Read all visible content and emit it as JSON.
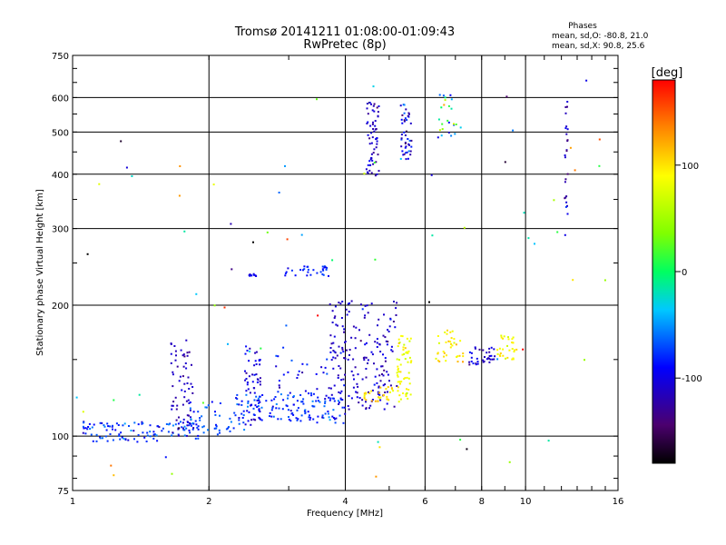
{
  "title": "Tromsø 20141211 01:08:00-01:09:43",
  "subtitle": "RwPretec (8p)",
  "phase_info": {
    "heading": "Phases",
    "line_o": "mean, sd,O: -80.8, 21.0",
    "line_x": "mean, sd,X:  90.8, 25.6"
  },
  "colorbar": {
    "label": "[deg]",
    "ticks": [
      "100",
      "0",
      "-100"
    ],
    "tick_values": [
      100,
      0,
      -100
    ],
    "range": [
      -180,
      180
    ]
  },
  "chart_data": {
    "type": "scatter",
    "xlabel": "Frequency [MHz]",
    "ylabel": "Stationary phase Virtual Height [km]",
    "xscale": "log",
    "yscale": "log",
    "xlim": [
      1,
      16
    ],
    "ylim": [
      75,
      750
    ],
    "x_ticks": [
      1,
      2,
      4,
      6,
      8,
      10,
      16
    ],
    "x_tick_labels": [
      "1",
      "2",
      "4",
      "6",
      "8",
      "10",
      "16"
    ],
    "y_ticks": [
      75,
      100,
      200,
      300,
      400,
      500,
      600,
      750
    ],
    "y_tick_labels": [
      "75",
      "100",
      "200",
      "300",
      "400",
      "500",
      "600",
      "750"
    ],
    "grid": true,
    "color_encodes": "phase [deg]",
    "clusters": [
      {
        "x_range": [
          1.05,
          1.9
        ],
        "y_range": [
          97,
          108
        ],
        "count": 110,
        "phase_mean": -80,
        "phase_sd": 15
      },
      {
        "x_range": [
          1.65,
          1.85
        ],
        "y_range": [
          100,
          168
        ],
        "count": 70,
        "phase_mean": -115,
        "phase_sd": 10
      },
      {
        "x_range": [
          1.8,
          2.4
        ],
        "y_range": [
          100,
          120
        ],
        "count": 45,
        "phase_mean": -70,
        "phase_sd": 12
      },
      {
        "x_range": [
          2.4,
          2.6
        ],
        "y_range": [
          105,
          162
        ],
        "count": 55,
        "phase_mean": -105,
        "phase_sd": 12
      },
      {
        "x_range": [
          2.2,
          4.0
        ],
        "y_range": [
          107,
          125
        ],
        "count": 130,
        "phase_mean": -80,
        "phase_sd": 15
      },
      {
        "x_range": [
          2.8,
          4.0
        ],
        "y_range": [
          120,
          160
        ],
        "count": 40,
        "phase_mean": -95,
        "phase_sd": 15
      },
      {
        "x_range": [
          3.7,
          5.2
        ],
        "y_range": [
          115,
          205
        ],
        "count": 180,
        "phase_mean": -110,
        "phase_sd": 12
      },
      {
        "x_range": [
          4.4,
          5.1
        ],
        "y_range": [
          120,
          130
        ],
        "count": 30,
        "phase_mean": 105,
        "phase_sd": 15
      },
      {
        "x_range": [
          5.2,
          5.6
        ],
        "y_range": [
          120,
          170
        ],
        "count": 60,
        "phase_mean": 85,
        "phase_sd": 12
      },
      {
        "x_range": [
          6.3,
          7.3
        ],
        "y_range": [
          148,
          175
        ],
        "count": 35,
        "phase_mean": 95,
        "phase_sd": 12
      },
      {
        "x_range": [
          7.5,
          8.6
        ],
        "y_range": [
          146,
          160
        ],
        "count": 35,
        "phase_mean": -110,
        "phase_sd": 12
      },
      {
        "x_range": [
          8.6,
          9.6
        ],
        "y_range": [
          150,
          172
        ],
        "count": 30,
        "phase_mean": 90,
        "phase_sd": 12
      },
      {
        "x_range": [
          4.45,
          4.75
        ],
        "y_range": [
          395,
          590
        ],
        "count": 60,
        "phase_mean": -115,
        "phase_sd": 12
      },
      {
        "x_range": [
          5.3,
          5.6
        ],
        "y_range": [
          430,
          580
        ],
        "count": 45,
        "phase_mean": -95,
        "phase_sd": 30
      },
      {
        "x_range": [
          6.4,
          7.2
        ],
        "y_range": [
          480,
          620
        ],
        "count": 25,
        "phase_mean": -20,
        "phase_sd": 60
      },
      {
        "x_range": [
          2.45,
          2.55
        ],
        "y_range": [
          233,
          236
        ],
        "count": 10,
        "phase_mean": -95,
        "phase_sd": 8
      },
      {
        "x_range": [
          2.9,
          3.7
        ],
        "y_range": [
          232,
          246
        ],
        "count": 30,
        "phase_mean": -85,
        "phase_sd": 12
      },
      {
        "x_range": [
          12.2,
          12.4
        ],
        "y_range": [
          270,
          590
        ],
        "count": 25,
        "phase_mean": -120,
        "phase_sd": 15
      },
      {
        "x_range": [
          1.0,
          15.0
        ],
        "y_range": [
          80,
          660
        ],
        "count": 70,
        "phase_mean": 0,
        "phase_sd": 110
      }
    ]
  }
}
